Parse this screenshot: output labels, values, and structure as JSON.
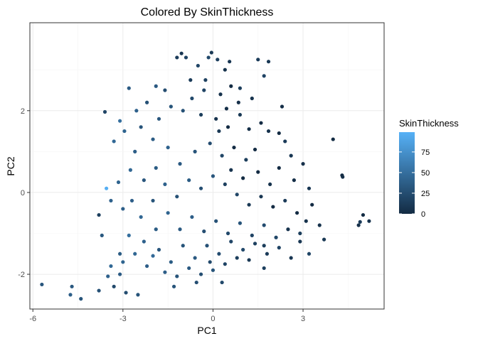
{
  "chart_data": {
    "type": "scatter",
    "title": "Colored By SkinThickness",
    "xlabel": "PC1",
    "ylabel": "PC2",
    "xlim": [
      -6.1,
      5.7
    ],
    "ylim": [
      -2.85,
      4.15
    ],
    "x_ticks": [
      -6,
      -3,
      0,
      3
    ],
    "y_ticks": [
      -2,
      0,
      2
    ],
    "x_tick_labels": [
      "-6",
      "-3",
      "0",
      "3"
    ],
    "y_tick_labels": [
      "-2",
      "0",
      "2"
    ],
    "grid": true,
    "legend": {
      "title": "SkinThickness",
      "placement": "right",
      "ticks": [
        0,
        25,
        50,
        75
      ],
      "tick_labels": [
        "0",
        "25",
        "50",
        "75"
      ],
      "range": [
        0,
        99
      ],
      "low_color": "#132B43",
      "high_color": "#56B1F7"
    },
    "points": [
      {
        "x": -5.7,
        "y": -2.25,
        "v": 32
      },
      {
        "x": -4.7,
        "y": -2.3,
        "v": 33
      },
      {
        "x": -4.75,
        "y": -2.5,
        "v": 38
      },
      {
        "x": -4.4,
        "y": -2.6,
        "v": 30
      },
      {
        "x": -3.8,
        "y": -2.4,
        "v": 28
      },
      {
        "x": -3.5,
        "y": -2.05,
        "v": 40
      },
      {
        "x": -3.1,
        "y": -2.0,
        "v": 35
      },
      {
        "x": -2.5,
        "y": -2.5,
        "v": 30
      },
      {
        "x": -3.3,
        "y": -2.3,
        "v": 22
      },
      {
        "x": -2.9,
        "y": -2.45,
        "v": 25
      },
      {
        "x": -3.4,
        "y": -1.8,
        "v": 45
      },
      {
        "x": -3.1,
        "y": -1.5,
        "v": 36
      },
      {
        "x": -3.8,
        "y": -0.55,
        "v": 15
      },
      {
        "x": -3.7,
        "y": -1.05,
        "v": 33
      },
      {
        "x": -3.55,
        "y": 0.1,
        "v": 97
      },
      {
        "x": -3.4,
        "y": -0.2,
        "v": 40
      },
      {
        "x": -3.15,
        "y": 0.25,
        "v": 42
      },
      {
        "x": -3.0,
        "y": -0.4,
        "v": 38
      },
      {
        "x": -3.6,
        "y": 1.97,
        "v": 20
      },
      {
        "x": -3.3,
        "y": 1.25,
        "v": 45
      },
      {
        "x": -3.1,
        "y": 1.75,
        "v": 50
      },
      {
        "x": -2.8,
        "y": 2.55,
        "v": 35
      },
      {
        "x": -2.95,
        "y": 1.5,
        "v": 42
      },
      {
        "x": -2.6,
        "y": 1.0,
        "v": 38
      },
      {
        "x": -2.4,
        "y": 1.6,
        "v": 30
      },
      {
        "x": -2.2,
        "y": 2.2,
        "v": 28
      },
      {
        "x": -2.0,
        "y": 1.3,
        "v": 36
      },
      {
        "x": -1.8,
        "y": 1.8,
        "v": 32
      },
      {
        "x": -1.6,
        "y": 2.5,
        "v": 25
      },
      {
        "x": -1.4,
        "y": 2.1,
        "v": 30
      },
      {
        "x": -1.2,
        "y": 3.3,
        "v": 12
      },
      {
        "x": -1.05,
        "y": 3.4,
        "v": 8
      },
      {
        "x": -0.9,
        "y": 3.3,
        "v": 18
      },
      {
        "x": -0.5,
        "y": 3.1,
        "v": 20
      },
      {
        "x": -0.15,
        "y": 3.3,
        "v": 22
      },
      {
        "x": -0.05,
        "y": 3.42,
        "v": 10
      },
      {
        "x": 0.15,
        "y": 3.25,
        "v": 15
      },
      {
        "x": 0.4,
        "y": 3.0,
        "v": 5
      },
      {
        "x": 0.55,
        "y": 3.2,
        "v": 8
      },
      {
        "x": 1.5,
        "y": 3.25,
        "v": 12
      },
      {
        "x": 1.85,
        "y": 3.2,
        "v": 10
      },
      {
        "x": 1.7,
        "y": 2.85,
        "v": 18
      },
      {
        "x": 1.3,
        "y": 2.3,
        "v": 6
      },
      {
        "x": 0.9,
        "y": 2.55,
        "v": 14
      },
      {
        "x": 0.6,
        "y": 2.6,
        "v": 0
      },
      {
        "x": 0.25,
        "y": 2.4,
        "v": 5
      },
      {
        "x": -0.3,
        "y": 2.5,
        "v": 18
      },
      {
        "x": -0.7,
        "y": 2.3,
        "v": 22
      },
      {
        "x": -1.0,
        "y": 2.0,
        "v": 28
      },
      {
        "x": -0.4,
        "y": 1.9,
        "v": 14
      },
      {
        "x": 0.1,
        "y": 1.8,
        "v": 6
      },
      {
        "x": 0.5,
        "y": 1.6,
        "v": 0
      },
      {
        "x": 0.9,
        "y": 1.9,
        "v": 10
      },
      {
        "x": 1.2,
        "y": 1.55,
        "v": 2
      },
      {
        "x": 1.6,
        "y": 1.7,
        "v": 0
      },
      {
        "x": 1.85,
        "y": 1.5,
        "v": 6
      },
      {
        "x": 2.2,
        "y": 1.45,
        "v": 0
      },
      {
        "x": 2.4,
        "y": 1.25,
        "v": 12
      },
      {
        "x": 2.6,
        "y": 0.9,
        "v": 8
      },
      {
        "x": 2.2,
        "y": 0.6,
        "v": 0
      },
      {
        "x": 1.9,
        "y": 0.2,
        "v": 5
      },
      {
        "x": 1.5,
        "y": 0.5,
        "v": 0
      },
      {
        "x": 1.1,
        "y": 0.8,
        "v": 14
      },
      {
        "x": 0.7,
        "y": 1.1,
        "v": 0
      },
      {
        "x": 0.3,
        "y": 0.9,
        "v": 20
      },
      {
        "x": -0.1,
        "y": 1.2,
        "v": 24
      },
      {
        "x": -0.6,
        "y": 1.0,
        "v": 30
      },
      {
        "x": -1.1,
        "y": 0.7,
        "v": 34
      },
      {
        "x": -1.5,
        "y": 1.1,
        "v": 40
      },
      {
        "x": -1.9,
        "y": 0.6,
        "v": 36
      },
      {
        "x": -2.3,
        "y": 0.3,
        "v": 32
      },
      {
        "x": -2.7,
        "y": -0.2,
        "v": 38
      },
      {
        "x": -2.4,
        "y": -0.6,
        "v": 44
      },
      {
        "x": -2.0,
        "y": -0.2,
        "v": 30
      },
      {
        "x": -1.6,
        "y": 0.2,
        "v": 40
      },
      {
        "x": -1.2,
        "y": -0.1,
        "v": 28
      },
      {
        "x": -0.8,
        "y": 0.3,
        "v": 36
      },
      {
        "x": -0.4,
        "y": 0.1,
        "v": 26
      },
      {
        "x": 0.0,
        "y": 0.4,
        "v": 32
      },
      {
        "x": 0.4,
        "y": 0.2,
        "v": 15
      },
      {
        "x": 0.8,
        "y": -0.05,
        "v": 20
      },
      {
        "x": 1.2,
        "y": -0.3,
        "v": 10
      },
      {
        "x": 1.6,
        "y": -0.1,
        "v": 8
      },
      {
        "x": 2.0,
        "y": -0.35,
        "v": 0
      },
      {
        "x": 2.4,
        "y": -0.2,
        "v": 12
      },
      {
        "x": 2.8,
        "y": -0.5,
        "v": 0
      },
      {
        "x": 3.1,
        "y": -0.7,
        "v": 5
      },
      {
        "x": 2.9,
        "y": -1.0,
        "v": 14
      },
      {
        "x": 2.5,
        "y": -0.9,
        "v": 6
      },
      {
        "x": 2.1,
        "y": -1.1,
        "v": 20
      },
      {
        "x": 1.7,
        "y": -0.8,
        "v": 24
      },
      {
        "x": 1.3,
        "y": -1.05,
        "v": 18
      },
      {
        "x": 0.9,
        "y": -0.75,
        "v": 30
      },
      {
        "x": 0.5,
        "y": -1.0,
        "v": 22
      },
      {
        "x": 0.1,
        "y": -0.7,
        "v": 28
      },
      {
        "x": -0.3,
        "y": -0.95,
        "v": 26
      },
      {
        "x": -0.7,
        "y": -0.6,
        "v": 38
      },
      {
        "x": -1.1,
        "y": -0.9,
        "v": 34
      },
      {
        "x": -1.5,
        "y": -0.5,
        "v": 42
      },
      {
        "x": -1.9,
        "y": -0.9,
        "v": 36
      },
      {
        "x": -2.3,
        "y": -1.2,
        "v": 40
      },
      {
        "x": -2.6,
        "y": -1.5,
        "v": 44
      },
      {
        "x": -2.2,
        "y": -1.8,
        "v": 38
      },
      {
        "x": -1.8,
        "y": -1.4,
        "v": 32
      },
      {
        "x": -1.4,
        "y": -1.7,
        "v": 36
      },
      {
        "x": -1.0,
        "y": -1.3,
        "v": 30
      },
      {
        "x": -0.6,
        "y": -1.6,
        "v": 34
      },
      {
        "x": -0.2,
        "y": -1.3,
        "v": 28
      },
      {
        "x": 0.2,
        "y": -1.5,
        "v": 24
      },
      {
        "x": 0.6,
        "y": -1.2,
        "v": 20
      },
      {
        "x": 1.0,
        "y": -1.4,
        "v": 22
      },
      {
        "x": 1.4,
        "y": -1.25,
        "v": 16
      },
      {
        "x": 1.8,
        "y": -1.5,
        "v": 12
      },
      {
        "x": 2.2,
        "y": -1.35,
        "v": 18
      },
      {
        "x": 2.6,
        "y": -1.6,
        "v": 8
      },
      {
        "x": 0.0,
        "y": -1.9,
        "v": 30
      },
      {
        "x": -0.4,
        "y": -2.0,
        "v": 26
      },
      {
        "x": -0.8,
        "y": -1.85,
        "v": 34
      },
      {
        "x": -1.2,
        "y": -2.05,
        "v": 30
      },
      {
        "x": -1.6,
        "y": -1.95,
        "v": 38
      },
      {
        "x": -0.1,
        "y": -1.7,
        "v": 22
      },
      {
        "x": 0.4,
        "y": -1.75,
        "v": 18
      },
      {
        "x": 0.8,
        "y": -1.6,
        "v": 14
      },
      {
        "x": 1.2,
        "y": -1.65,
        "v": 10
      },
      {
        "x": 1.7,
        "y": -1.85,
        "v": 15
      },
      {
        "x": 3.2,
        "y": -1.5,
        "v": 20
      },
      {
        "x": 3.7,
        "y": -1.15,
        "v": 10
      },
      {
        "x": 3.55,
        "y": -0.8,
        "v": 5
      },
      {
        "x": 3.3,
        "y": -0.3,
        "v": 0
      },
      {
        "x": 3.2,
        "y": 0.1,
        "v": 8
      },
      {
        "x": 4.0,
        "y": 1.3,
        "v": 0
      },
      {
        "x": 4.3,
        "y": 0.42,
        "v": 0
      },
      {
        "x": 4.32,
        "y": 0.38,
        "v": 2
      },
      {
        "x": 4.85,
        "y": -0.8,
        "v": 4
      },
      {
        "x": 5.0,
        "y": -0.55,
        "v": 0
      },
      {
        "x": 5.2,
        "y": -0.7,
        "v": 6
      },
      {
        "x": 4.9,
        "y": -0.72,
        "v": 12
      },
      {
        "x": 3.0,
        "y": 0.7,
        "v": 4
      },
      {
        "x": 2.7,
        "y": 0.3,
        "v": 2
      },
      {
        "x": 1.0,
        "y": 0.35,
        "v": 0
      },
      {
        "x": 0.6,
        "y": 0.55,
        "v": 6
      },
      {
        "x": 1.4,
        "y": 1.05,
        "v": 0
      },
      {
        "x": 0.2,
        "y": 1.5,
        "v": 10
      },
      {
        "x": 0.85,
        "y": 2.2,
        "v": 4
      },
      {
        "x": -0.25,
        "y": 2.75,
        "v": 16
      },
      {
        "x": -1.9,
        "y": 2.6,
        "v": 34
      },
      {
        "x": -2.55,
        "y": 2.0,
        "v": 40
      },
      {
        "x": -2.75,
        "y": 0.55,
        "v": 44
      },
      {
        "x": -2.0,
        "y": -1.55,
        "v": 46
      },
      {
        "x": -2.8,
        "y": -1.05,
        "v": 50
      },
      {
        "x": -3.0,
        "y": -1.7,
        "v": 42
      },
      {
        "x": -1.3,
        "y": -2.3,
        "v": 30
      },
      {
        "x": -0.55,
        "y": -2.2,
        "v": 26
      },
      {
        "x": 0.3,
        "y": -2.2,
        "v": 22
      },
      {
        "x": 1.7,
        "y": -1.3,
        "v": 14
      },
      {
        "x": 2.9,
        "y": -1.2,
        "v": 9
      },
      {
        "x": 2.3,
        "y": 2.1,
        "v": 3
      },
      {
        "x": -0.75,
        "y": 2.75,
        "v": 12
      },
      {
        "x": 0.45,
        "y": 2.05,
        "v": 2
      }
    ]
  }
}
